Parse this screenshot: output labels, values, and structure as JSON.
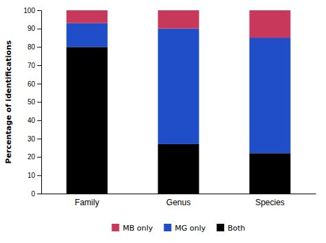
{
  "chart_data": {
    "type": "bar",
    "stacked": true,
    "categories": [
      "Family",
      "Genus",
      "Species"
    ],
    "series": [
      {
        "name": "Both",
        "color": "#000000",
        "values": [
          80,
          27,
          22
        ]
      },
      {
        "name": "MG only",
        "color": "#1f4ec8",
        "values": [
          13,
          63,
          63
        ]
      },
      {
        "name": "MB only",
        "color": "#c8385a",
        "values": [
          7,
          10,
          15
        ]
      }
    ],
    "ylabel": "Percentage of identifications",
    "ylim": [
      0,
      100
    ],
    "yticks": [
      0,
      10,
      20,
      30,
      40,
      50,
      60,
      70,
      80,
      90,
      100
    ],
    "grid": false,
    "legend": "bottom"
  }
}
